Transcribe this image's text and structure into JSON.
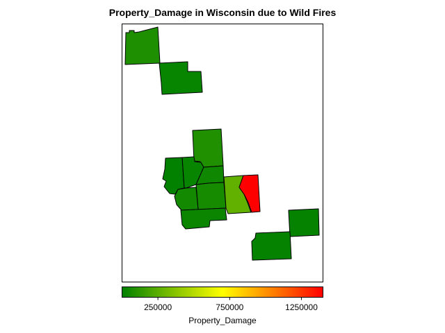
{
  "title": "Property_Damage in Wisconsin due to Wild Fires",
  "legend": {
    "title": "Property_Damage",
    "ticks": [
      "250000",
      "750000",
      "1250000"
    ],
    "tick_values": [
      250000,
      750000,
      1250000
    ],
    "range": [
      0,
      1400000
    ],
    "colors": [
      "#008000",
      "#ffff00",
      "#ff0000"
    ]
  },
  "colors": {
    "low": "#008000",
    "mid": "#ffff00",
    "high": "#ff0000",
    "border": "#000000"
  },
  "chart_data": {
    "type": "choropleth",
    "variable": "Property_Damage",
    "color_scale": [
      "#008000",
      "#ffff00",
      "#ff0000"
    ],
    "regions": [
      {
        "id": "nw-county-upper",
        "value": 80000
      },
      {
        "id": "nw-county-lower",
        "value": 20000
      },
      {
        "id": "central-north",
        "value": 90000
      },
      {
        "id": "central-west",
        "value": 5000
      },
      {
        "id": "central-middle",
        "value": 20000
      },
      {
        "id": "central-northeast",
        "value": 40000
      },
      {
        "id": "central-center",
        "value": 60000
      },
      {
        "id": "central-southwest",
        "value": 50000
      },
      {
        "id": "central-south",
        "value": 30000
      },
      {
        "id": "east-green",
        "value": 270000
      },
      {
        "id": "east-red",
        "value": 1400000
      },
      {
        "id": "southeast-upper",
        "value": 10000
      },
      {
        "id": "southeast-lower",
        "value": 15000
      }
    ]
  }
}
